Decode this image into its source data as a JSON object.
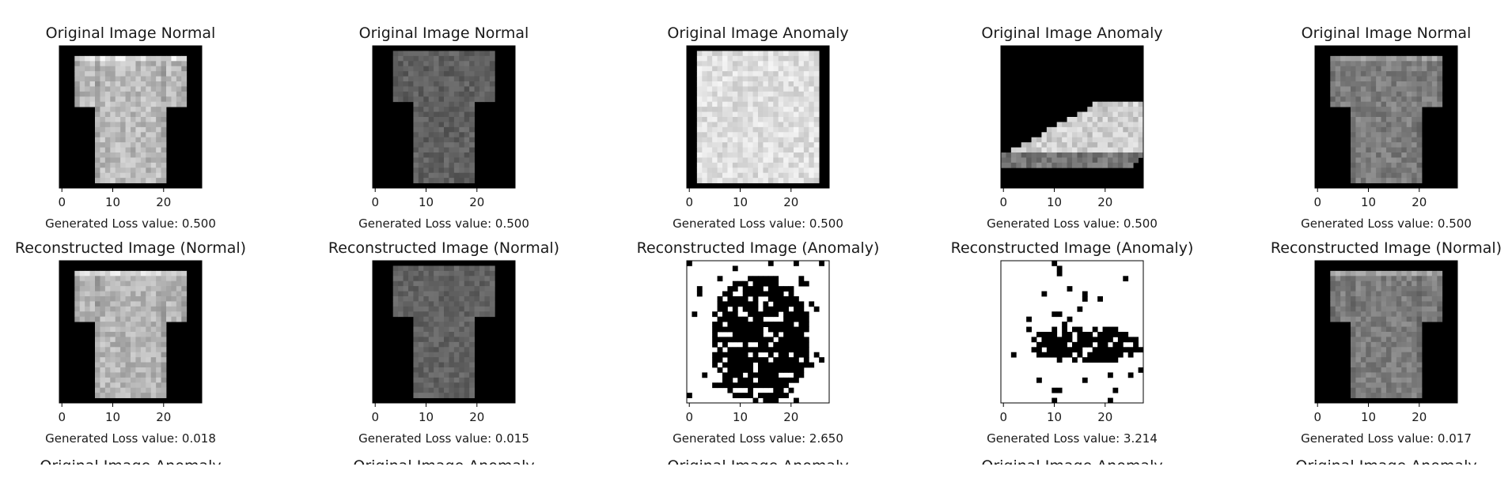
{
  "figure": {
    "background": "#ffffff",
    "text_color": "#1a1a1a",
    "colormap": "gray",
    "xticks": [
      0,
      10,
      20
    ],
    "image_size": 28,
    "axis_range": [
      -0.5,
      27.5
    ],
    "loss_prefix": "Generated Loss value: ",
    "next_row_cut_titles": [
      "Original Image Anomaly",
      "Original Image Anomaly",
      "Original Image Anomaly",
      "Original Image Anomaly",
      "Original Image Anomaly"
    ]
  },
  "chart_data": [
    {
      "type": "heatmap",
      "panel": "original",
      "title": "Original Image Normal",
      "xlabel": "Generated Loss value: 0.500",
      "loss": 0.5,
      "xlim": [
        -0.5,
        27.5
      ],
      "item": "t-shirt",
      "variant": "orig"
    },
    {
      "type": "heatmap",
      "panel": "original",
      "title": "Original Image Normal",
      "xlabel": "Generated Loss value: 0.500",
      "loss": 0.5,
      "xlim": [
        -0.5,
        27.5
      ],
      "item": "polo",
      "variant": "orig"
    },
    {
      "type": "heatmap",
      "panel": "original",
      "title": "Original Image Anomaly",
      "xlabel": "Generated Loss value: 0.500",
      "loss": 0.5,
      "xlim": [
        -0.5,
        27.5
      ],
      "item": "longsleeve",
      "variant": "orig"
    },
    {
      "type": "heatmap",
      "panel": "original",
      "title": "Original Image Anomaly",
      "xlabel": "Generated Loss value: 0.500",
      "loss": 0.5,
      "xlim": [
        -0.5,
        27.5
      ],
      "item": "sneaker",
      "variant": "orig"
    },
    {
      "type": "heatmap",
      "panel": "original",
      "title": "Original Image Normal",
      "xlabel": "Generated Loss value: 0.500",
      "loss": 0.5,
      "xlim": [
        -0.5,
        27.5
      ],
      "item": "tee",
      "variant": "orig"
    },
    {
      "type": "heatmap",
      "panel": "reconstructed",
      "title": "Reconstructed Image (Normal)",
      "xlabel": "Generated Loss value: 0.018",
      "loss": 0.018,
      "xlim": [
        -0.5,
        27.5
      ],
      "item": "t-shirt",
      "variant": "recon"
    },
    {
      "type": "heatmap",
      "panel": "reconstructed",
      "title": "Reconstructed Image (Normal)",
      "xlabel": "Generated Loss value: 0.015",
      "loss": 0.015,
      "xlim": [
        -0.5,
        27.5
      ],
      "item": "polo",
      "variant": "recon"
    },
    {
      "type": "heatmap",
      "panel": "reconstructed",
      "title": "Reconstructed Image (Anomaly)",
      "xlabel": "Generated Loss value: 2.650",
      "loss": 2.65,
      "xlim": [
        -0.5,
        27.5
      ],
      "item": "blob-tall",
      "variant": "binary"
    },
    {
      "type": "heatmap",
      "panel": "reconstructed",
      "title": "Reconstructed Image (Anomaly)",
      "xlabel": "Generated Loss value: 3.214",
      "loss": 3.214,
      "xlim": [
        -0.5,
        27.5
      ],
      "item": "blob-wide",
      "variant": "binary"
    },
    {
      "type": "heatmap",
      "panel": "reconstructed",
      "title": "Reconstructed Image (Normal)",
      "xlabel": "Generated Loss value: 0.017",
      "loss": 0.017,
      "xlim": [
        -0.5,
        27.5
      ],
      "item": "tee",
      "variant": "recon"
    }
  ]
}
